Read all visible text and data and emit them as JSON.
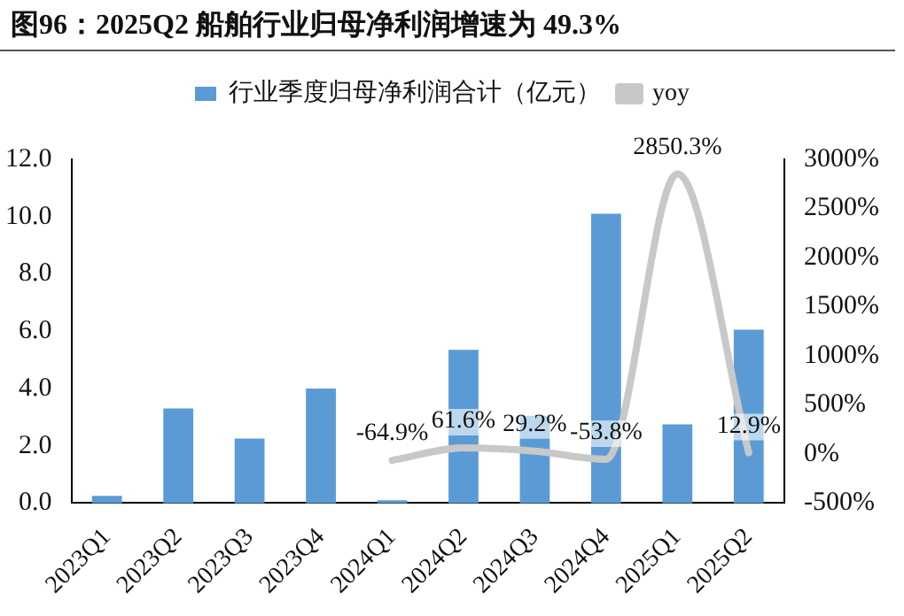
{
  "chart_data": {
    "type": "bar",
    "title": "图96：2025Q2 船舶行业归母净利润增速为 49.3%",
    "categories": [
      "2023Q1",
      "2023Q2",
      "2023Q3",
      "2023Q4",
      "2024Q1",
      "2024Q2",
      "2024Q3",
      "2024Q4",
      "2025Q1",
      "2025Q2"
    ],
    "series": [
      {
        "name": "行业季度归母净利润合计（亿元）",
        "color": "#5b9bd5",
        "values": [
          0.25,
          3.3,
          2.25,
          4.0,
          0.1,
          5.35,
          3.05,
          10.1,
          2.75,
          6.05
        ]
      },
      {
        "name": "yoy",
        "type": "line",
        "axis": "y2",
        "color": "#c8c8c8",
        "values": [
          null,
          null,
          null,
          null,
          -64.9,
          61.6,
          29.2,
          -53.8,
          2850.3,
          12.9
        ],
        "value_labels": [
          null,
          null,
          null,
          null,
          "-64.9%",
          "61.6%",
          "29.2%",
          "-53.8%",
          "2850.3%",
          "12.9%"
        ]
      }
    ],
    "ylim": [
      0,
      12
    ],
    "yticks": [
      {
        "value": 0,
        "label": "0.0"
      },
      {
        "value": 2,
        "label": "2.0"
      },
      {
        "value": 4,
        "label": "4.0"
      },
      {
        "value": 6,
        "label": "6.0"
      },
      {
        "value": 8,
        "label": "8.0"
      },
      {
        "value": 10,
        "label": "10.0"
      },
      {
        "value": 12,
        "label": "12.0"
      }
    ],
    "y2lim": [
      -500,
      3000
    ],
    "y2ticks": [
      {
        "value": -500,
        "label": "-500%"
      },
      {
        "value": 0,
        "label": "0%"
      },
      {
        "value": 500,
        "label": "500%"
      },
      {
        "value": 1000,
        "label": "1000%"
      },
      {
        "value": 1500,
        "label": "1500%"
      },
      {
        "value": 2000,
        "label": "2000%"
      },
      {
        "value": 2500,
        "label": "2500%"
      },
      {
        "value": 3000,
        "label": "3000%"
      }
    ],
    "legend": "top",
    "grid": false,
    "marker": "none"
  }
}
